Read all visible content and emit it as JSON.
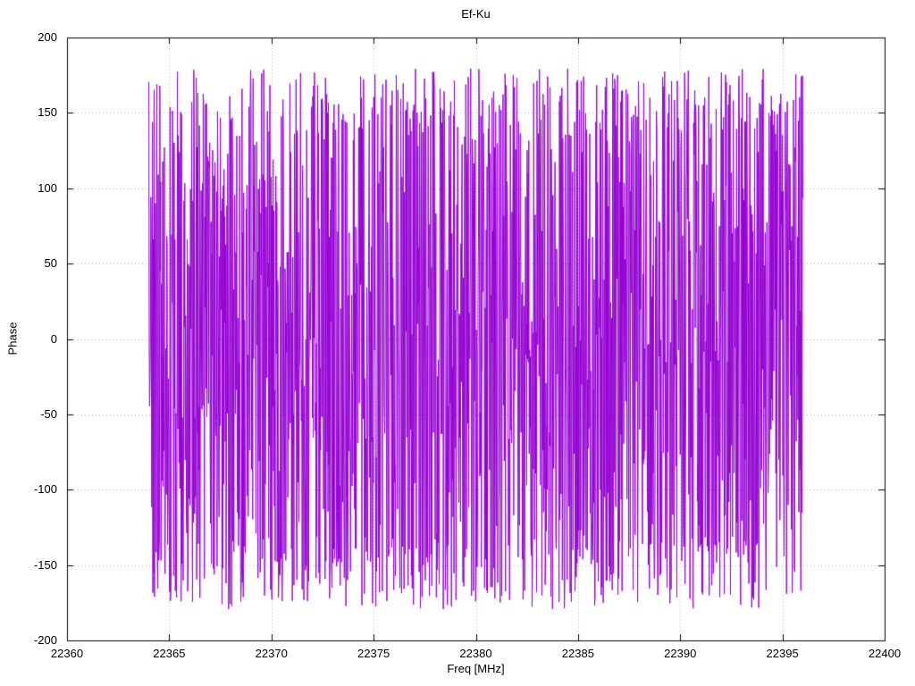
{
  "chart_data": {
    "type": "line",
    "title": "Ef-Ku",
    "xlabel": "Freq [MHz]",
    "ylabel": "Phase",
    "xlim": [
      22360,
      22400
    ],
    "ylim": [
      -200,
      200
    ],
    "x_ticks": [
      22360,
      22365,
      22370,
      22375,
      22380,
      22385,
      22390,
      22395,
      22400
    ],
    "y_ticks": [
      -200,
      -150,
      -100,
      -50,
      0,
      50,
      100,
      150,
      200
    ],
    "grid": true,
    "grid_style": "dotted",
    "grid_color": "#b3b3b3",
    "border_color": "#000000",
    "legend_position": "none",
    "series": [
      {
        "name": "Phase",
        "color": "#9400d3",
        "x_start": 22364,
        "x_end": 22396,
        "n_points": 1600,
        "y_min": -180,
        "y_max": 180,
        "distribution": "uniform-random-wrapped-phase-noise",
        "seed": 1337
      }
    ]
  }
}
